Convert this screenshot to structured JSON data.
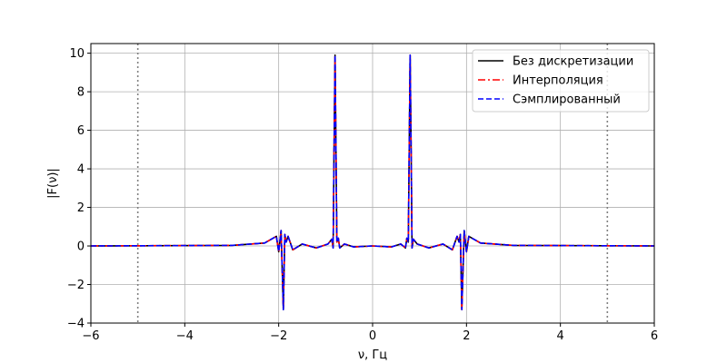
{
  "chart_data": {
    "type": "line",
    "xlabel": "ν, Гц",
    "ylabel": "|F(ν)|",
    "xlim": [
      -6,
      6
    ],
    "ylim": [
      -4,
      10.5
    ],
    "xticks": [
      -6,
      -4,
      -2,
      0,
      2,
      4,
      6
    ],
    "yticks": [
      -4,
      -2,
      0,
      2,
      4,
      6,
      8,
      10
    ],
    "xtick_labels": [
      "−6",
      "−4",
      "−2",
      "0",
      "2",
      "4",
      "6"
    ],
    "ytick_labels": [
      "−4",
      "−2",
      "0",
      "2",
      "4",
      "6",
      "8",
      "10"
    ],
    "grid": true,
    "legend_position": "top-right",
    "vertical_markers": [
      -5,
      5
    ],
    "marker_color": "#808080",
    "series": [
      {
        "name": "Без дискретизации",
        "color": "#000000",
        "style": "solid"
      },
      {
        "name": "Интерполяция",
        "color": "#ff0000",
        "style": "dashdot"
      },
      {
        "name": "Сэмплированный",
        "color": "#0000ff",
        "style": "dashed"
      }
    ],
    "x": [
      -6.0,
      -3.0,
      -2.3,
      -2.05,
      -2.0,
      -1.95,
      -1.9,
      -1.87,
      -1.84,
      -1.8,
      -1.7,
      -1.5,
      -1.2,
      -0.95,
      -0.87,
      -0.84,
      -0.82,
      -0.8,
      -0.78,
      -0.76,
      -0.73,
      -0.7,
      -0.6,
      -0.4,
      0.0,
      0.4,
      0.6,
      0.7,
      0.73,
      0.76,
      0.78,
      0.8,
      0.82,
      0.84,
      0.87,
      0.95,
      1.2,
      1.5,
      1.7,
      1.8,
      1.84,
      1.87,
      1.9,
      1.95,
      2.0,
      2.05,
      2.3,
      3.0,
      6.0
    ],
    "y": [
      0.0,
      0.03,
      0.15,
      0.5,
      -0.3,
      0.8,
      -3.3,
      0.6,
      0.2,
      0.5,
      -0.2,
      0.1,
      -0.1,
      0.1,
      0.35,
      -0.1,
      5.0,
      9.9,
      5.0,
      0.2,
      0.4,
      -0.1,
      0.1,
      -0.05,
      0.0,
      -0.05,
      0.1,
      -0.1,
      0.4,
      0.2,
      5.0,
      9.9,
      5.0,
      -0.1,
      0.35,
      0.1,
      -0.1,
      0.1,
      -0.2,
      0.5,
      0.2,
      0.6,
      -3.3,
      0.8,
      -0.3,
      0.5,
      0.15,
      0.03,
      0.0
    ]
  }
}
